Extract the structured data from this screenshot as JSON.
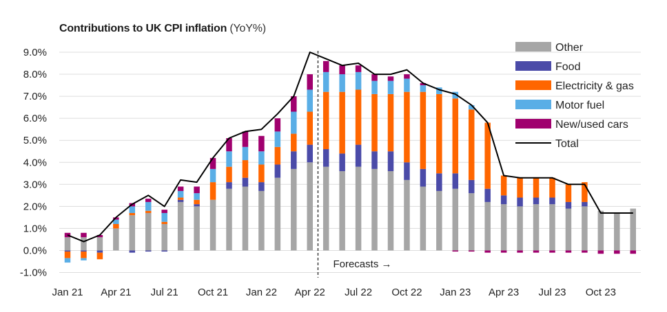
{
  "chart_data": {
    "type": "bar",
    "title": "Contributions to UK CPI inflation",
    "subtitle": "(YoY%)",
    "stacked": true,
    "ylim": [
      -1.0,
      9.0
    ],
    "yticks": [
      "-1.0%",
      "0.0%",
      "1.0%",
      "2.0%",
      "3.0%",
      "4.0%",
      "5.0%",
      "6.0%",
      "7.0%",
      "8.0%",
      "9.0%"
    ],
    "x_tick_labels": [
      "Jan 21",
      "Apr 21",
      "Jul 21",
      "Oct 21",
      "Jan 22",
      "Apr 22",
      "Jul 22",
      "Oct 22",
      "Jan 23",
      "Apr 23",
      "Jul 23",
      "Oct 23"
    ],
    "x_tick_every": 3,
    "forecast_start_index": 16,
    "annotation": "Forecasts →",
    "legend_position": "top-right",
    "categories": [
      "Jan 21",
      "Feb 21",
      "Mar 21",
      "Apr 21",
      "May 21",
      "Jun 21",
      "Jul 21",
      "Aug 21",
      "Sep 21",
      "Oct 21",
      "Nov 21",
      "Dec 21",
      "Jan 22",
      "Feb 22",
      "Mar 22",
      "Apr 22",
      "May 22",
      "Jun 22",
      "Jul 22",
      "Aug 22",
      "Sep 22",
      "Oct 22",
      "Nov 22",
      "Dec 22",
      "Jan 23",
      "Feb 23",
      "Mar 23",
      "Apr 23",
      "May 23",
      "Jun 23",
      "Jul 23",
      "Aug 23",
      "Sep 23",
      "Oct 23",
      "Nov 23",
      "Dec 23"
    ],
    "series": [
      {
        "name": "Other",
        "color": "#a6a6a6",
        "values": [
          0.6,
          0.6,
          0.6,
          1.0,
          1.6,
          1.7,
          1.2,
          2.2,
          2.0,
          2.3,
          2.8,
          2.9,
          2.7,
          3.3,
          3.7,
          4.0,
          3.8,
          3.6,
          3.8,
          3.7,
          3.6,
          3.2,
          2.9,
          2.7,
          2.8,
          2.6,
          2.2,
          2.1,
          2.0,
          2.1,
          2.1,
          1.9,
          2.0,
          1.8,
          1.7,
          1.9
        ]
      },
      {
        "name": "Food",
        "color": "#4b4ba8",
        "values": [
          -0.05,
          -0.05,
          -0.1,
          0.0,
          -0.1,
          -0.05,
          -0.05,
          0.1,
          0.1,
          0.0,
          0.3,
          0.4,
          0.4,
          0.6,
          0.8,
          0.8,
          0.8,
          0.8,
          1.0,
          0.8,
          0.9,
          0.8,
          0.8,
          0.8,
          0.7,
          0.6,
          0.6,
          0.4,
          0.4,
          0.3,
          0.3,
          0.3,
          0.2,
          0.0,
          0.0,
          0.0
        ]
      },
      {
        "name": "Electricity & gas",
        "color": "#ff6600",
        "values": [
          -0.3,
          -0.3,
          -0.3,
          0.2,
          0.1,
          0.1,
          0.1,
          0.1,
          0.2,
          0.8,
          0.7,
          0.8,
          0.8,
          0.8,
          0.8,
          1.5,
          2.6,
          2.8,
          2.5,
          2.6,
          2.6,
          3.2,
          3.5,
          3.6,
          3.4,
          3.2,
          3.0,
          0.9,
          0.9,
          0.9,
          0.9,
          0.8,
          0.9,
          0.0,
          0.0,
          0.0
        ]
      },
      {
        "name": "Motor fuel",
        "color": "#5aaee6",
        "values": [
          -0.2,
          -0.1,
          0.0,
          0.2,
          0.3,
          0.4,
          0.4,
          0.3,
          0.3,
          0.6,
          0.7,
          0.6,
          0.6,
          0.7,
          1.0,
          1.0,
          0.9,
          0.8,
          0.8,
          0.6,
          0.6,
          0.6,
          0.3,
          0.3,
          0.3,
          0.2,
          0.0,
          0.0,
          0.0,
          0.0,
          0.0,
          0.0,
          0.0,
          0.0,
          0.0,
          0.0
        ]
      },
      {
        "name": "New/used cars",
        "color": "#a0006e",
        "values": [
          0.2,
          0.2,
          0.1,
          0.1,
          0.15,
          0.15,
          0.15,
          0.2,
          0.3,
          0.5,
          0.6,
          0.7,
          0.7,
          0.6,
          0.7,
          0.7,
          0.5,
          0.4,
          0.3,
          0.3,
          0.2,
          0.2,
          0.1,
          0.0,
          0.0,
          0.0,
          0.0,
          0.0,
          0.0,
          0.0,
          0.0,
          0.0,
          0.0,
          0.0,
          0.0,
          0.0
        ]
      }
    ],
    "negative_tail": {
      "name": "New/used cars",
      "color": "#a0006e",
      "values": [
        0,
        0,
        0,
        0,
        0,
        0,
        0,
        0,
        0,
        0,
        0,
        0,
        0,
        0,
        0,
        0,
        0,
        0,
        0,
        0,
        0,
        0,
        0,
        0,
        -0.05,
        -0.05,
        -0.1,
        -0.1,
        -0.1,
        -0.1,
        -0.1,
        -0.1,
        -0.1,
        -0.15,
        -0.15,
        -0.15
      ]
    },
    "total": {
      "name": "Total",
      "color": "#000000",
      "values": [
        0.7,
        0.4,
        0.7,
        1.5,
        2.1,
        2.5,
        2.0,
        3.2,
        3.1,
        4.2,
        5.1,
        5.4,
        5.5,
        6.2,
        7.0,
        9.0,
        8.7,
        8.4,
        8.5,
        8.0,
        8.0,
        8.2,
        7.6,
        7.3,
        7.1,
        6.6,
        5.8,
        3.4,
        3.3,
        3.3,
        3.3,
        3.0,
        3.0,
        1.7,
        1.7,
        1.7
      ]
    }
  },
  "legend": [
    {
      "label": "Other",
      "color": "#a6a6a6",
      "kind": "box"
    },
    {
      "label": "Food",
      "color": "#4b4ba8",
      "kind": "box"
    },
    {
      "label": "Electricity & gas",
      "color": "#ff6600",
      "kind": "box"
    },
    {
      "label": "Motor fuel",
      "color": "#5aaee6",
      "kind": "box"
    },
    {
      "label": "New/used cars",
      "color": "#a0006e",
      "kind": "box"
    },
    {
      "label": "Total",
      "color": "#000000",
      "kind": "line"
    }
  ]
}
